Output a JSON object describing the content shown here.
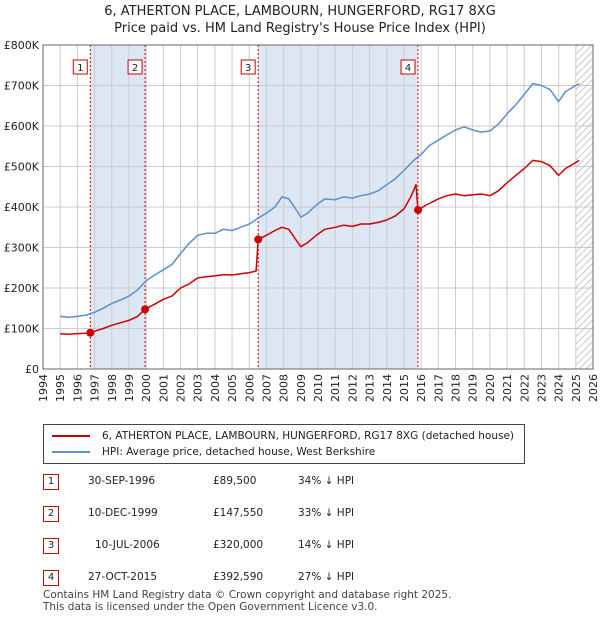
{
  "title_line1": "6, ATHERTON PLACE, LAMBOURN, HUNGERFORD, RG17 8XG",
  "title_line2": "Price paid vs. HM Land Registry's House Price Index (HPI)",
  "colors": {
    "price": "#cc0000",
    "hpi": "#5b8fcf",
    "shade": "#dde6f3",
    "grid": "#cccccc"
  },
  "chart_data": {
    "type": "line",
    "x_range": [
      1994,
      2026
    ],
    "ylim": [
      0,
      800000
    ],
    "y_ticks": [
      "£0",
      "£100K",
      "£200K",
      "£300K",
      "£400K",
      "£500K",
      "£600K",
      "£700K",
      "£800K"
    ],
    "x_ticks": [
      "1994",
      "1995",
      "1996",
      "1997",
      "1998",
      "1999",
      "2000",
      "2001",
      "2002",
      "2003",
      "2004",
      "2005",
      "2006",
      "2007",
      "2008",
      "2009",
      "2010",
      "2011",
      "2012",
      "2013",
      "2014",
      "2015",
      "2016",
      "2017",
      "2018",
      "2019",
      "2020",
      "2021",
      "2022",
      "2023",
      "2024",
      "2025",
      "2026"
    ],
    "shaded_ranges": [
      [
        1996.75,
        1999.94
      ],
      [
        2006.52,
        2015.82
      ]
    ],
    "future_from": 2025.0,
    "series": [
      {
        "name": "6, ATHERTON PLACE, LAMBOURN, HUNGERFORD, RG17 8XG (detached house)",
        "color": "#cc0000",
        "points": [
          [
            1995.0,
            87000
          ],
          [
            1995.5,
            86000
          ],
          [
            1996.0,
            87500
          ],
          [
            1996.5,
            88500
          ],
          [
            1996.75,
            89500
          ],
          [
            1997.0,
            93000
          ],
          [
            1997.5,
            100000
          ],
          [
            1998.0,
            108000
          ],
          [
            1998.5,
            114000
          ],
          [
            1999.0,
            120000
          ],
          [
            1999.5,
            130000
          ],
          [
            1999.94,
            147550
          ],
          [
            2000.5,
            160000
          ],
          [
            2001.0,
            172000
          ],
          [
            2001.5,
            180000
          ],
          [
            2002.0,
            200000
          ],
          [
            2002.5,
            210000
          ],
          [
            2003.0,
            225000
          ],
          [
            2003.5,
            228000
          ],
          [
            2004.0,
            230000
          ],
          [
            2004.5,
            233000
          ],
          [
            2005.0,
            232000
          ],
          [
            2005.5,
            235000
          ],
          [
            2006.0,
            238000
          ],
          [
            2006.4,
            242000
          ],
          [
            2006.52,
            320000
          ],
          [
            2007.0,
            330000
          ],
          [
            2007.5,
            342000
          ],
          [
            2007.9,
            350000
          ],
          [
            2008.3,
            345000
          ],
          [
            2008.7,
            320000
          ],
          [
            2009.0,
            302000
          ],
          [
            2009.4,
            312000
          ],
          [
            2009.9,
            330000
          ],
          [
            2010.4,
            345000
          ],
          [
            2011.0,
            350000
          ],
          [
            2011.5,
            355000
          ],
          [
            2012.0,
            352000
          ],
          [
            2012.5,
            358000
          ],
          [
            2013.0,
            358000
          ],
          [
            2013.5,
            362000
          ],
          [
            2014.0,
            368000
          ],
          [
            2014.5,
            378000
          ],
          [
            2015.0,
            395000
          ],
          [
            2015.4,
            425000
          ],
          [
            2015.7,
            455000
          ],
          [
            2015.82,
            392590
          ],
          [
            2016.3,
            405000
          ],
          [
            2017.0,
            420000
          ],
          [
            2017.5,
            428000
          ],
          [
            2018.0,
            432000
          ],
          [
            2018.5,
            428000
          ],
          [
            2019.0,
            430000
          ],
          [
            2019.5,
            432000
          ],
          [
            2020.0,
            428000
          ],
          [
            2020.5,
            440000
          ],
          [
            2021.0,
            460000
          ],
          [
            2021.5,
            478000
          ],
          [
            2022.0,
            495000
          ],
          [
            2022.5,
            515000
          ],
          [
            2023.0,
            512000
          ],
          [
            2023.5,
            502000
          ],
          [
            2024.0,
            478000
          ],
          [
            2024.4,
            495000
          ],
          [
            2025.0,
            510000
          ],
          [
            2025.2,
            515000
          ]
        ]
      },
      {
        "name": "HPI: Average price, detached house, West Berkshire",
        "color": "#5b8fcf",
        "points": [
          [
            1995.0,
            130000
          ],
          [
            1995.5,
            128000
          ],
          [
            1996.0,
            130000
          ],
          [
            1996.5,
            133000
          ],
          [
            1997.0,
            140000
          ],
          [
            1997.5,
            150000
          ],
          [
            1998.0,
            162000
          ],
          [
            1998.5,
            170000
          ],
          [
            1999.0,
            180000
          ],
          [
            1999.5,
            195000
          ],
          [
            2000.0,
            218000
          ],
          [
            2000.5,
            232000
          ],
          [
            2001.0,
            245000
          ],
          [
            2001.5,
            258000
          ],
          [
            2002.0,
            285000
          ],
          [
            2002.5,
            310000
          ],
          [
            2003.0,
            330000
          ],
          [
            2003.5,
            335000
          ],
          [
            2004.0,
            335000
          ],
          [
            2004.5,
            345000
          ],
          [
            2005.0,
            342000
          ],
          [
            2005.5,
            350000
          ],
          [
            2006.0,
            358000
          ],
          [
            2006.5,
            372000
          ],
          [
            2007.0,
            385000
          ],
          [
            2007.5,
            400000
          ],
          [
            2007.9,
            425000
          ],
          [
            2008.3,
            420000
          ],
          [
            2008.7,
            395000
          ],
          [
            2009.0,
            375000
          ],
          [
            2009.4,
            385000
          ],
          [
            2009.9,
            405000
          ],
          [
            2010.4,
            420000
          ],
          [
            2011.0,
            418000
          ],
          [
            2011.5,
            425000
          ],
          [
            2012.0,
            422000
          ],
          [
            2012.5,
            428000
          ],
          [
            2013.0,
            432000
          ],
          [
            2013.5,
            440000
          ],
          [
            2014.0,
            455000
          ],
          [
            2014.5,
            470000
          ],
          [
            2015.0,
            490000
          ],
          [
            2015.5,
            512000
          ],
          [
            2016.0,
            530000
          ],
          [
            2016.5,
            552000
          ],
          [
            2017.0,
            565000
          ],
          [
            2017.5,
            578000
          ],
          [
            2018.0,
            590000
          ],
          [
            2018.5,
            598000
          ],
          [
            2019.0,
            590000
          ],
          [
            2019.5,
            585000
          ],
          [
            2020.0,
            588000
          ],
          [
            2020.5,
            605000
          ],
          [
            2021.0,
            630000
          ],
          [
            2021.5,
            652000
          ],
          [
            2022.0,
            678000
          ],
          [
            2022.5,
            705000
          ],
          [
            2023.0,
            700000
          ],
          [
            2023.5,
            690000
          ],
          [
            2024.0,
            660000
          ],
          [
            2024.4,
            685000
          ],
          [
            2025.0,
            700000
          ],
          [
            2025.2,
            705000
          ]
        ]
      }
    ],
    "markers": [
      {
        "label": "1",
        "x": 1996.75,
        "y": 89500
      },
      {
        "label": "2",
        "x": 1999.94,
        "y": 147550
      },
      {
        "label": "3",
        "x": 2006.52,
        "y": 320000
      },
      {
        "label": "4",
        "x": 2015.82,
        "y": 392590
      }
    ]
  },
  "legend": {
    "price_label": "6, ATHERTON PLACE, LAMBOURN, HUNGERFORD, RG17 8XG (detached house)",
    "hpi_label": "HPI: Average price, detached house, West Berkshire"
  },
  "transactions": [
    {
      "num": "1",
      "date": "30-SEP-1996",
      "price": "£89,500",
      "hpi": "34% ↓ HPI"
    },
    {
      "num": "2",
      "date": "10-DEC-1999",
      "price": "£147,550",
      "hpi": "33% ↓ HPI"
    },
    {
      "num": "3",
      "date": "10-JUL-2006",
      "price": "£320,000",
      "hpi": "14% ↓ HPI"
    },
    {
      "num": "4",
      "date": "27-OCT-2015",
      "price": "£392,590",
      "hpi": "27% ↓ HPI"
    }
  ],
  "footer_line1": "Contains HM Land Registry data © Crown copyright and database right 2025.",
  "footer_line2": "This data is licensed under the Open Government Licence v3.0."
}
